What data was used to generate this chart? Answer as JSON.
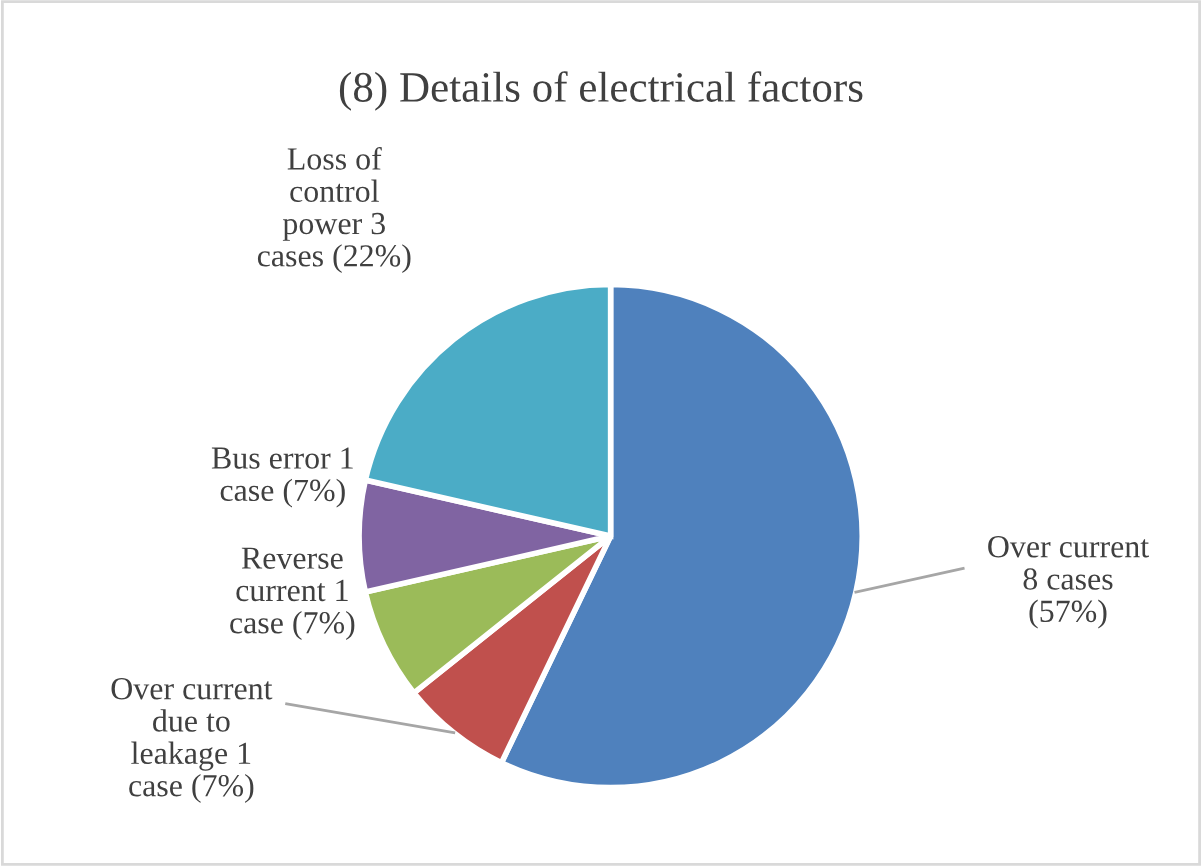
{
  "chart_data": {
    "type": "pie",
    "title": "(8) Details of electrical factors",
    "categories": [
      "Over current\n8 cases\n(57%)",
      "Over current\ndue to\nleakage 1\ncase (7%)",
      "Reverse\ncurrent 1\ncase (7%)",
      "Bus error 1\ncase (7%)",
      "Loss of\ncontrol\npower 3\ncases (22%)"
    ],
    "values": [
      8,
      1,
      1,
      1,
      3
    ],
    "colors": [
      "#4f81bd",
      "#c0504d",
      "#9bbb59",
      "#8064a2",
      "#4bacc6"
    ],
    "legend": false
  }
}
